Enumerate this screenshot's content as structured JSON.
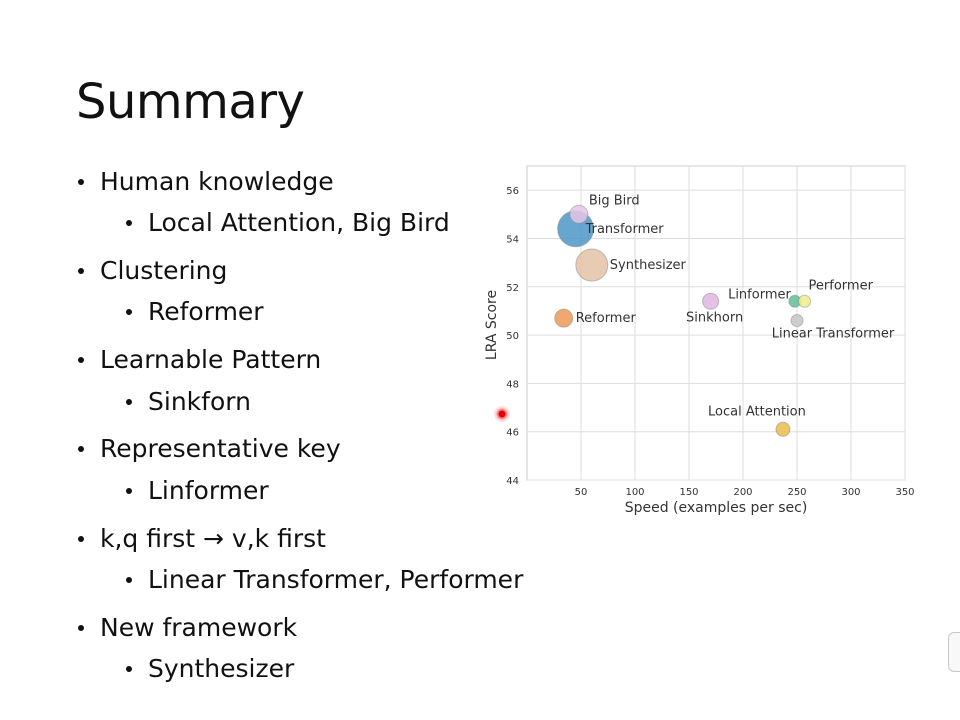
{
  "slide": {
    "title": "Summary",
    "bullets": [
      {
        "text": "Human knowledge"
      },
      {
        "text": "Local Attention, Big Bird"
      },
      {
        "text": "Clustering"
      },
      {
        "text": "Reformer"
      },
      {
        "text": "Learnable Pattern"
      },
      {
        "text": "Sinkforn"
      },
      {
        "text": "Representative key"
      },
      {
        "text": "Linformer"
      },
      {
        "text": "k,q first → v,k first"
      },
      {
        "text": "Linear Transformer, Performer"
      },
      {
        "text": "New framework"
      },
      {
        "text": "Synthesizer"
      }
    ]
  },
  "chart_data": {
    "type": "scatter",
    "title": "",
    "xlabel": "Speed (examples per sec)",
    "ylabel": "LRA Score",
    "xlim": [
      0,
      350
    ],
    "ylim": [
      44,
      57
    ],
    "xticks": [
      50,
      100,
      150,
      200,
      250,
      300,
      350
    ],
    "yticks": [
      44,
      46,
      48,
      50,
      52,
      54,
      56
    ],
    "grid": true,
    "points": [
      {
        "label": "Transformer",
        "x": 45,
        "y": 54.4,
        "size": 18,
        "color": "#4c97c6"
      },
      {
        "label": "Big Bird",
        "x": 48,
        "y": 55.0,
        "size": 9,
        "color": "#e5c4e8"
      },
      {
        "label": "Synthesizer",
        "x": 60,
        "y": 52.9,
        "size": 16,
        "color": "#e4c2a6"
      },
      {
        "label": "Reformer",
        "x": 34,
        "y": 50.7,
        "size": 9,
        "color": "#ec9a57"
      },
      {
        "label": "Sinkhorn",
        "x": 170,
        "y": 51.4,
        "size": 8,
        "color": "#e2b6e3"
      },
      {
        "label": "Linformer",
        "x": 248,
        "y": 51.4,
        "size": 6,
        "color": "#5dbf9a"
      },
      {
        "label": "Performer",
        "x": 257,
        "y": 51.4,
        "size": 6,
        "color": "#eeee88"
      },
      {
        "label": "Linear Transformer",
        "x": 250,
        "y": 50.6,
        "size": 6,
        "color": "#c6c6c6"
      },
      {
        "label": "Local Attention",
        "x": 237,
        "y": 46.1,
        "size": 7,
        "color": "#e7bd4a"
      }
    ]
  }
}
